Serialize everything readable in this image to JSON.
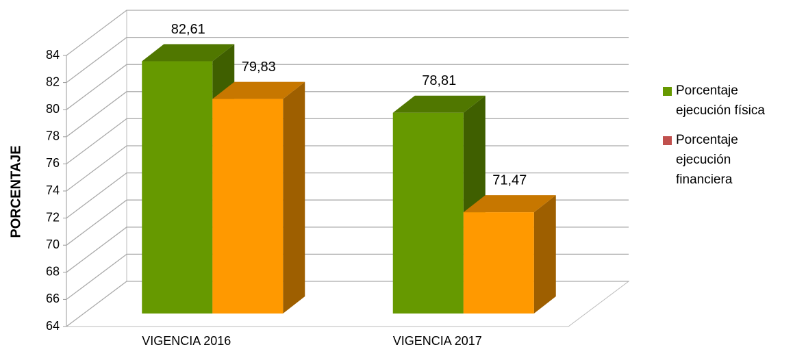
{
  "chart_data": {
    "type": "bar3d",
    "categories": [
      "VIGENCIA 2016",
      "VIGENCIA 2017"
    ],
    "series": [
      {
        "name": "Porcentaje ejecución física",
        "color": "#669900",
        "values": [
          82.61,
          78.81
        ],
        "value_labels": [
          "82,61",
          "78,81"
        ]
      },
      {
        "name": "Porcentaje ejecución financiera",
        "color": "#ff9900",
        "legend_color": "#c0504d",
        "values": [
          79.83,
          71.47
        ],
        "value_labels": [
          "79,83",
          "71,47"
        ]
      }
    ],
    "y_label": "PORCENTAJE",
    "ylim": [
      64,
      84
    ],
    "yticks": [
      64,
      66,
      68,
      70,
      72,
      74,
      76,
      78,
      80,
      82,
      84
    ],
    "grid": true,
    "legend": "right"
  }
}
